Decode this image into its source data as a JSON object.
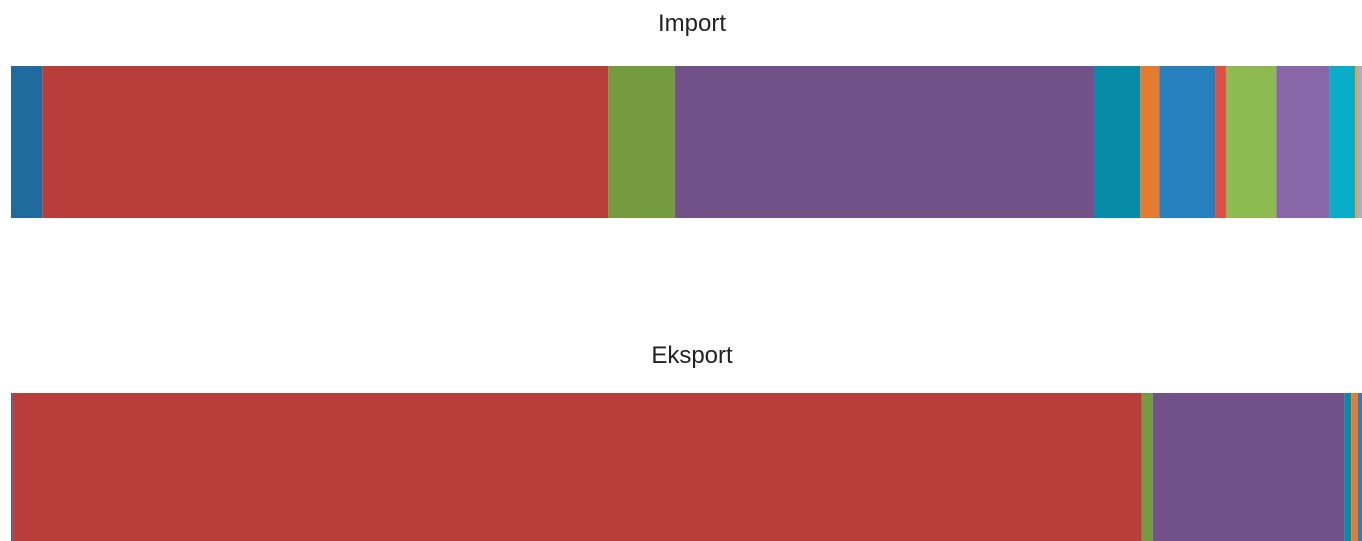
{
  "chart_data": [
    {
      "type": "bar",
      "orientation": "horizontal-stacked-100",
      "title": "Import",
      "segments": [
        {
          "value": 2.3,
          "color": "#1f6b9e"
        },
        {
          "value": 41.6,
          "color": "#b83d3b"
        },
        {
          "value": 4.9,
          "color": "#759b40"
        },
        {
          "value": 30.8,
          "color": "#725188"
        },
        {
          "value": 3.4,
          "color": "#078ba6"
        },
        {
          "value": 1.4,
          "color": "#e47b2f"
        },
        {
          "value": 4.1,
          "color": "#2680be"
        },
        {
          "value": 0.8,
          "color": "#dd4f45"
        },
        {
          "value": 3.7,
          "color": "#8eba52"
        },
        {
          "value": 3.9,
          "color": "#8966a8"
        },
        {
          "value": 1.9,
          "color": "#09adc9"
        },
        {
          "value": 0.2,
          "color": "#f09a3a"
        },
        {
          "value": 0.3,
          "color": "#9fb4cf"
        }
      ]
    },
    {
      "type": "bar",
      "orientation": "horizontal-stacked-100",
      "title": "Eksport",
      "segments": [
        {
          "value": 0.1,
          "color": "#1f6b9e"
        },
        {
          "value": 83.1,
          "color": "#b83d3b"
        },
        {
          "value": 0.8,
          "color": "#759b40"
        },
        {
          "value": 14.1,
          "color": "#725188"
        },
        {
          "value": 0.5,
          "color": "#078ba6"
        },
        {
          "value": 0.5,
          "color": "#e47b2f"
        },
        {
          "value": 0.3,
          "color": "#2680be"
        }
      ]
    }
  ]
}
